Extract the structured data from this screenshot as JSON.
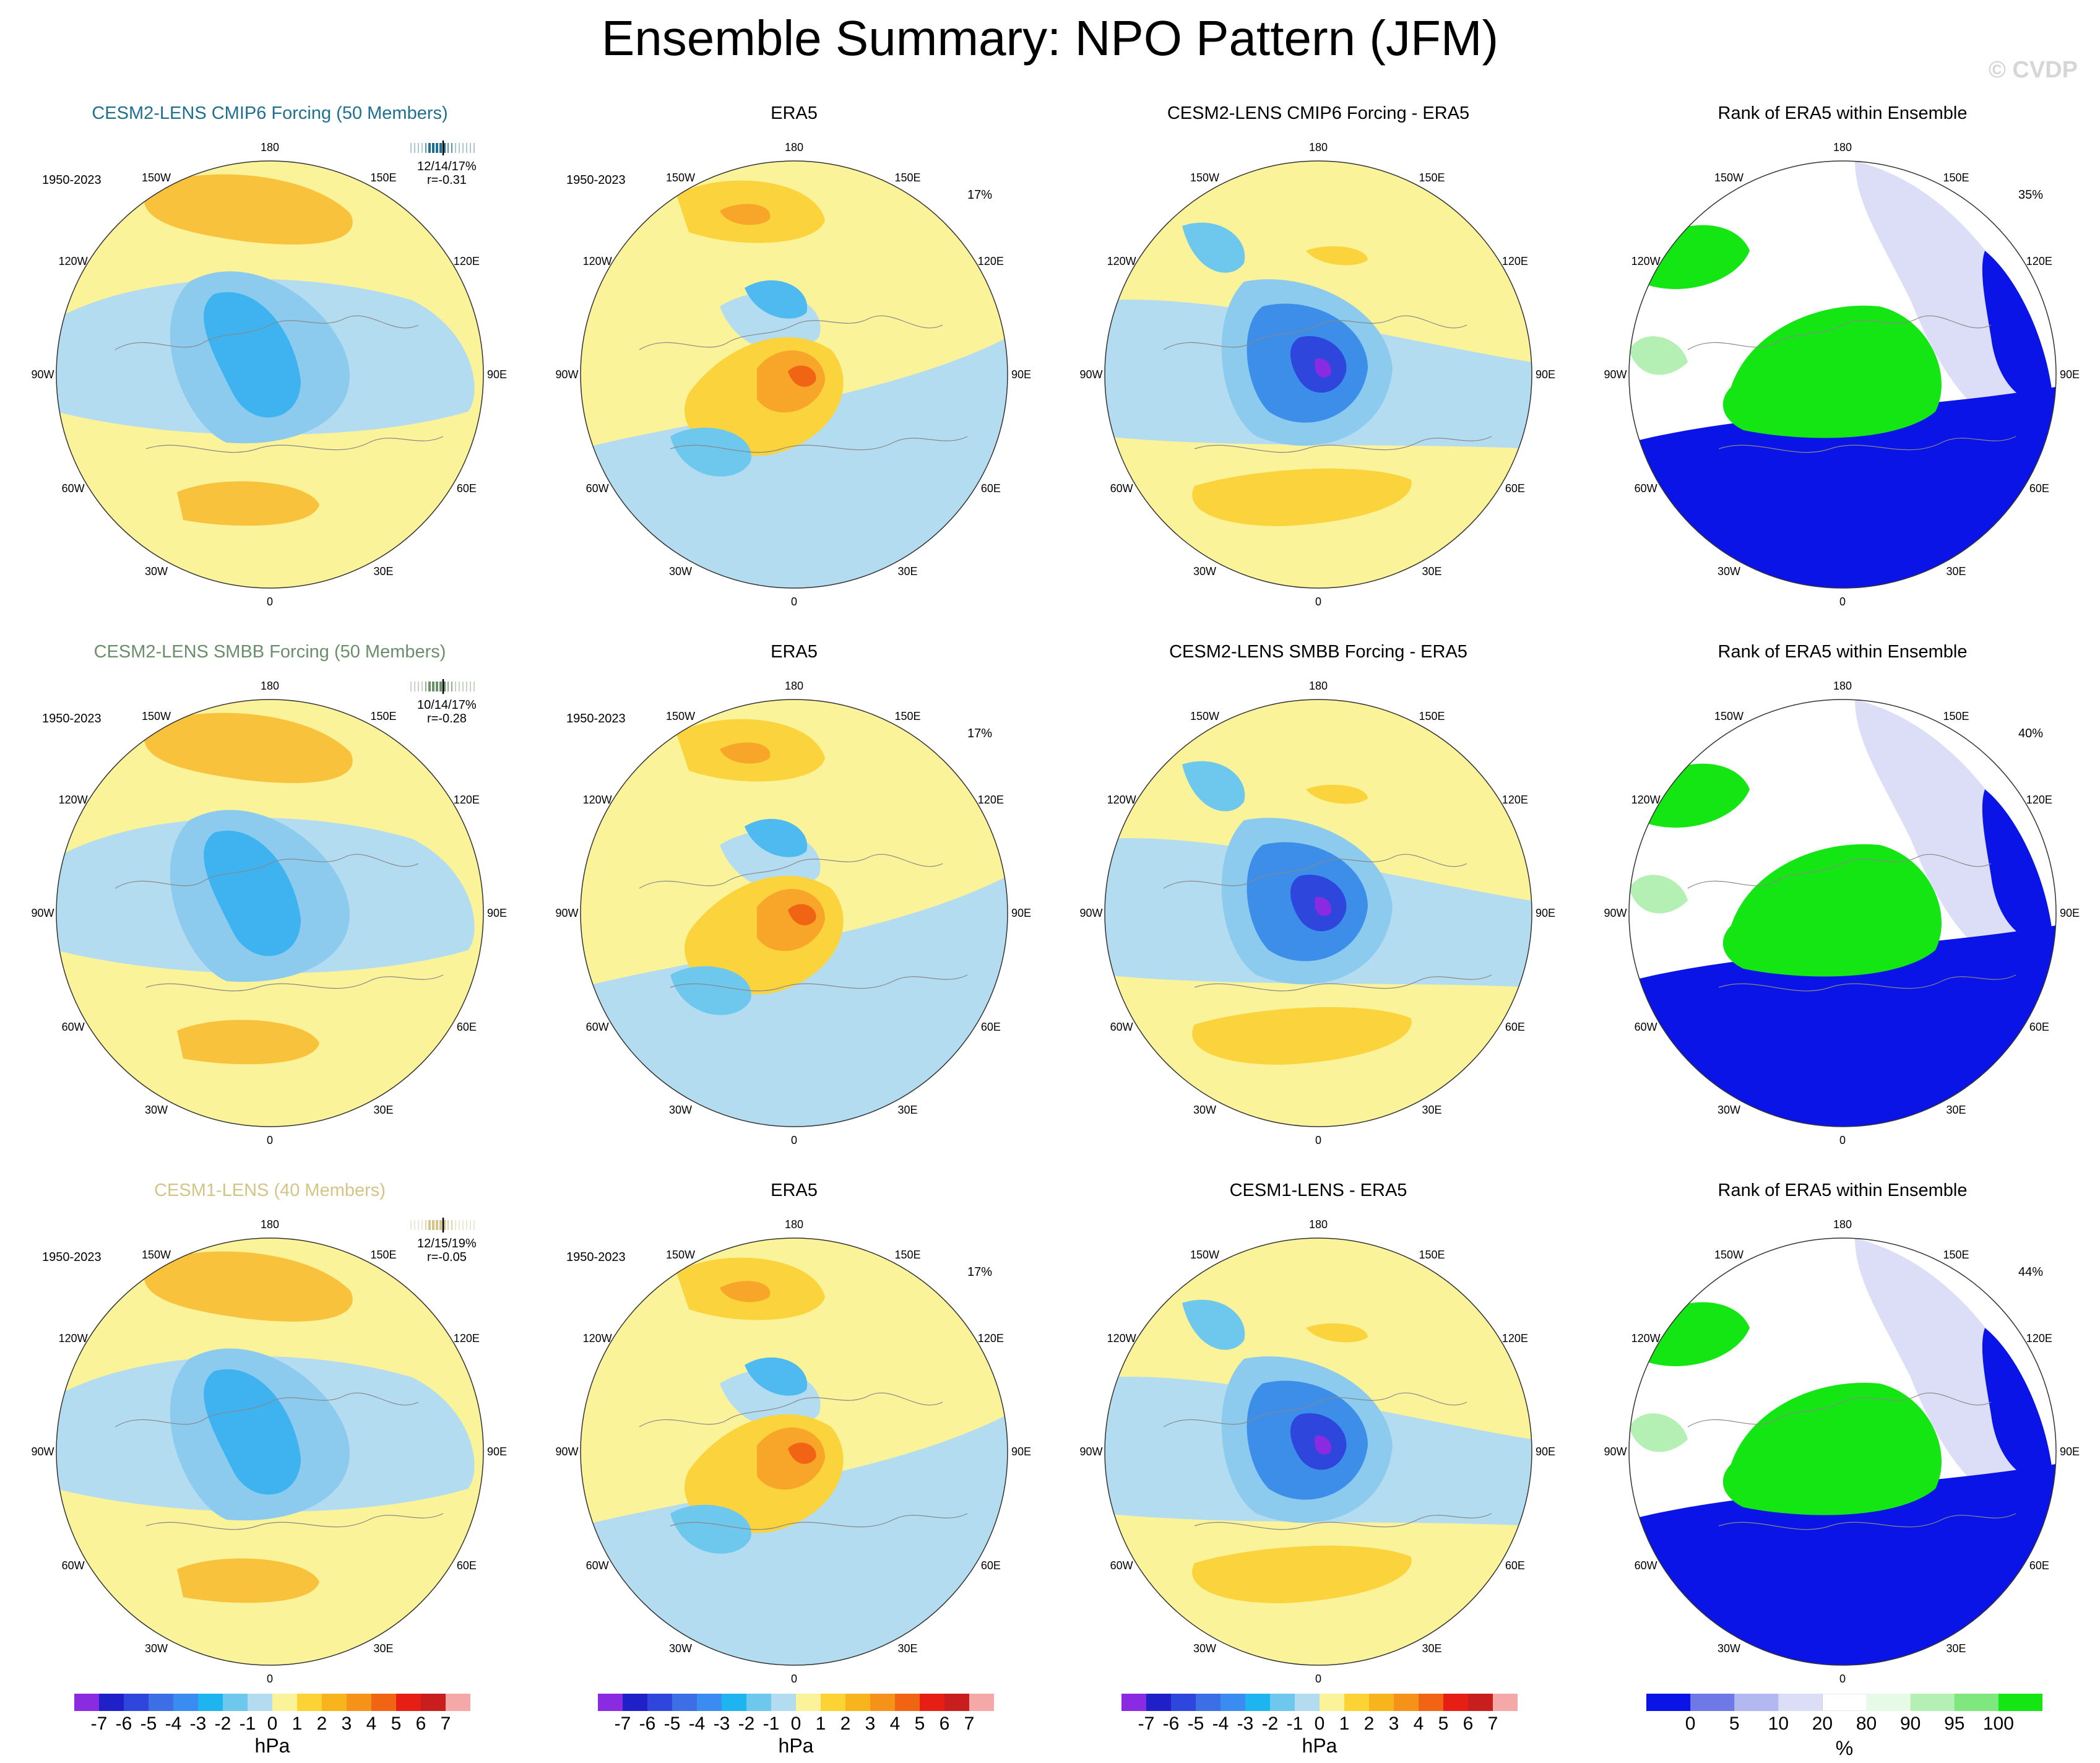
{
  "title": "Ensemble Summary: NPO Pattern (JFM)",
  "copyright": "© CVDP",
  "colors": {
    "model_row1": "#1f6f8f",
    "model_row2": "#6b8e6b",
    "model_row3": "#d4c486",
    "neutral_yellow": "#fbf39a",
    "neutral_blue": "#b4dcf0"
  },
  "lon_labels": [
    "180",
    "150E",
    "120E",
    "90E",
    "60E",
    "30E",
    "0",
    "30W",
    "60W",
    "90W",
    "120W",
    "150W"
  ],
  "rows": [
    {
      "model_title": "CESM2-LENS CMIP6 Forcing (50 Members)",
      "period": "1950-2023",
      "stats": "12/14/17%",
      "corr": "r=-0.31",
      "era5_title": "ERA5",
      "era5_period": "1950-2023",
      "era5_pct": "17%",
      "diff_title": "CESM2-LENS CMIP6 Forcing - ERA5",
      "rank_title": "Rank of ERA5 within Ensemble",
      "rank_pct": "35%"
    },
    {
      "model_title": "CESM2-LENS SMBB Forcing (50 Members)",
      "period": "1950-2023",
      "stats": "10/14/17%",
      "corr": "r=-0.28",
      "era5_title": "ERA5",
      "era5_period": "1950-2023",
      "era5_pct": "17%",
      "diff_title": "CESM2-LENS SMBB Forcing - ERA5",
      "rank_title": "Rank of ERA5 within Ensemble",
      "rank_pct": "40%"
    },
    {
      "model_title": "CESM1-LENS (40 Members)",
      "period": "1950-2023",
      "stats": "12/15/19%",
      "corr": "r=-0.05",
      "era5_title": "ERA5",
      "era5_period": "1950-2023",
      "era5_pct": "17%",
      "diff_title": "CESM1-LENS - ERA5",
      "rank_title": "Rank of ERA5 within Ensemble",
      "rank_pct": "44%"
    }
  ],
  "hpa_colorbar": {
    "unit": "hPa",
    "ticks": [
      "-7",
      "-6",
      "-5",
      "-4",
      "-3",
      "-2",
      "-1",
      "0",
      "1",
      "2",
      "3",
      "4",
      "5",
      "6",
      "7"
    ],
    "colors": [
      "#8a2be2",
      "#2020c8",
      "#2e46dc",
      "#3c6ee6",
      "#3a8cf0",
      "#1eb4f0",
      "#6ec8ee",
      "#b4dcf0",
      "#fbf39a",
      "#fcd234",
      "#f8b41c",
      "#f5921a",
      "#f06414",
      "#e61e14",
      "#c81e1e",
      "#f5a8a8"
    ]
  },
  "pct_colorbar": {
    "unit": "%",
    "ticks": [
      "0",
      "5",
      "10",
      "20",
      "80",
      "90",
      "95",
      "100"
    ],
    "colors": [
      "#0a14e6",
      "#6e78e6",
      "#b4b8f0",
      "#dcdef8",
      "#ffffff",
      "#e6fae6",
      "#b4f0b4",
      "#7ee87e",
      "#14e614"
    ]
  }
}
